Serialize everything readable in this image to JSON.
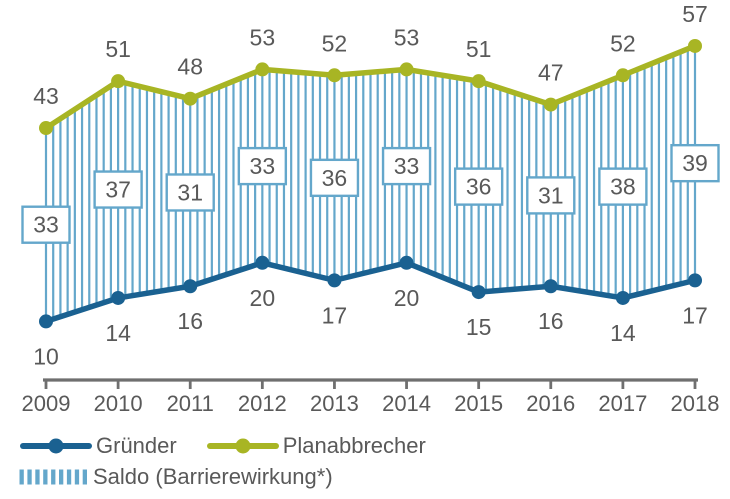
{
  "chart_data": {
    "type": "line",
    "title": "",
    "xlabel": "",
    "ylabel": "",
    "categories": [
      "2009",
      "2010",
      "2011",
      "2012",
      "2013",
      "2014",
      "2015",
      "2016",
      "2017",
      "2018"
    ],
    "series": [
      {
        "name": "Gründer",
        "values": [
          10,
          14,
          16,
          20,
          17,
          20,
          15,
          16,
          14,
          17
        ],
        "color": "#1a6191",
        "marker": "circle",
        "label_position": "below"
      },
      {
        "name": "Planabbrecher",
        "values": [
          43,
          51,
          48,
          53,
          52,
          53,
          51,
          47,
          52,
          57
        ],
        "color": "#a8b524",
        "marker": "circle",
        "label_position": "above"
      }
    ],
    "saldo": {
      "name": "Saldo (Barrierewirkung*)",
      "values": [
        33,
        37,
        31,
        33,
        36,
        33,
        36,
        31,
        38,
        39
      ],
      "color": "#64a7cb",
      "style": "vertical-hatch-between-series",
      "labels_boxed": true
    },
    "ylim": [
      0,
      62
    ],
    "grid": false,
    "legend_position": "bottom-left",
    "text_color": "#595959",
    "axis_color": "#6f6f6f",
    "background": "#ffffff"
  },
  "legend": {
    "items": [
      {
        "id": "gruender",
        "label": "Gründer",
        "swatch": "line-with-dot",
        "color": "#1a6191"
      },
      {
        "id": "planabbrecher",
        "label": "Planabbrecher",
        "swatch": "line-with-dot",
        "color": "#a8b524"
      },
      {
        "id": "saldo",
        "label": "Saldo (Barrierewirkung*)",
        "swatch": "vertical-dashes",
        "color": "#64a7cb"
      }
    ]
  }
}
